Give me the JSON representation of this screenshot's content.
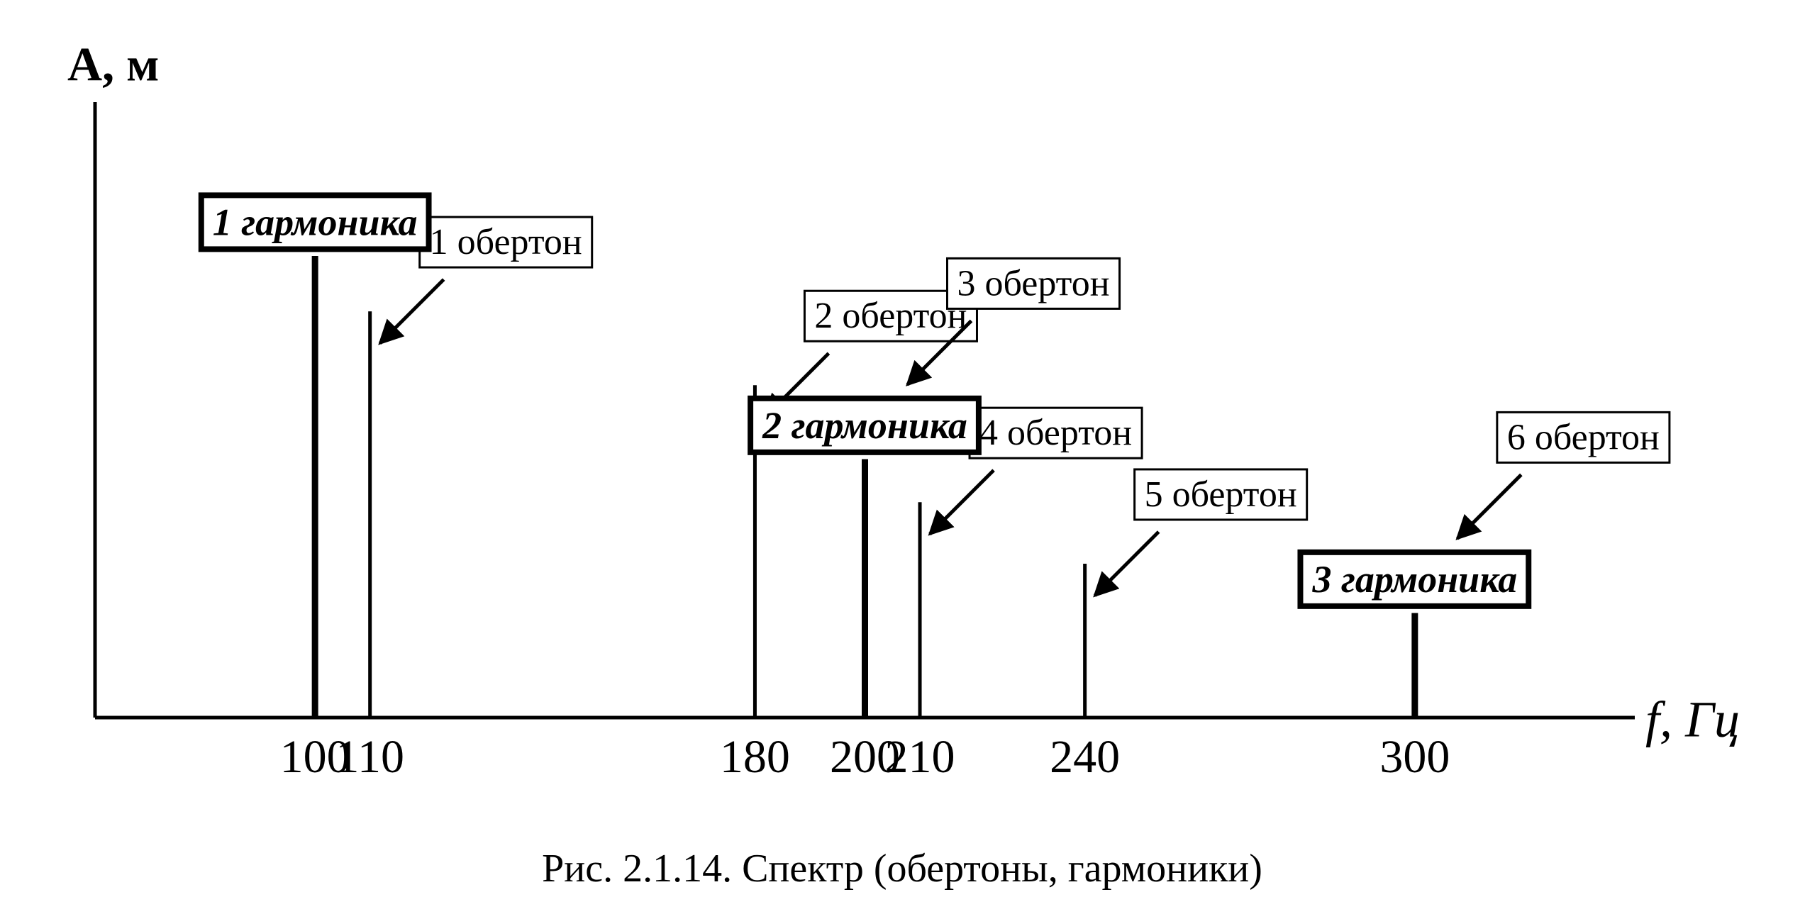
{
  "chart_data": {
    "type": "stem",
    "y_label": "A, м",
    "x_label": "f, Гц",
    "caption": "Рис. 2.1.14. Спектр (обертоны, гармоники)",
    "xlim": [
      60,
      340
    ],
    "ylim": [
      0,
      10
    ],
    "xticks": [
      100,
      110,
      180,
      200,
      210,
      240,
      300
    ],
    "color": "#000000",
    "harmonics": {
      "x": [
        100,
        200,
        300
      ],
      "values": [
        7.5,
        4.2,
        1.7
      ],
      "labels": [
        "1 гармоника",
        "2 гармоника",
        "3 гармоника"
      ]
    },
    "overtones": {
      "x": [
        110,
        180,
        200,
        210,
        240,
        300
      ],
      "values": [
        6.6,
        5.4,
        4.2,
        3.5,
        2.5,
        1.7
      ],
      "labels": [
        "1 обертон",
        "2 обертон",
        "3 обертон",
        "4 обертон",
        "5 обертон",
        "6 обертон"
      ]
    }
  }
}
